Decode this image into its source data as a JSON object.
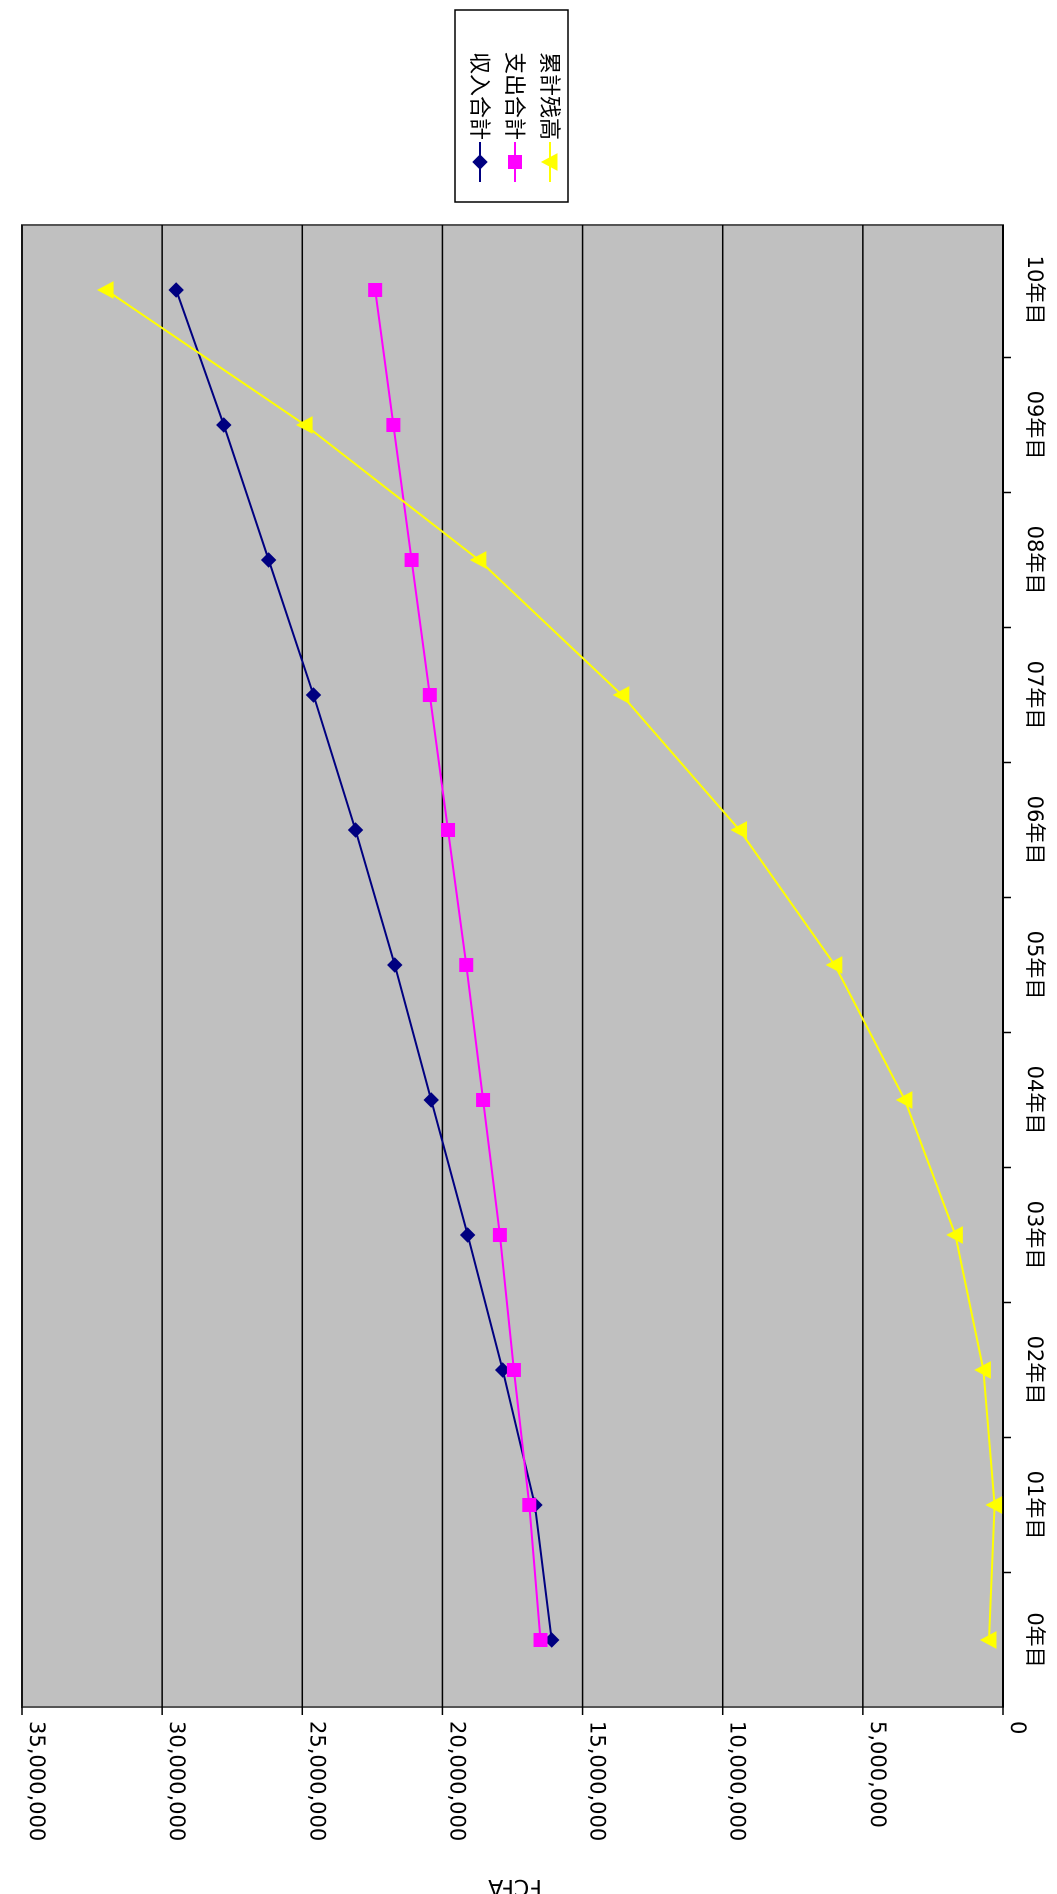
{
  "chart_data": {
    "type": "line",
    "orientation": "rotated-90-clockwise",
    "title": "",
    "xlabel": "",
    "ylabel": "FCFA",
    "categories": [
      "0年目",
      "01年目",
      "02年目",
      "03年目",
      "04年目",
      "05年目",
      "06年目",
      "07年目",
      "08年目",
      "09年目",
      "10年目"
    ],
    "ylim": [
      0,
      35000000
    ],
    "yticks": [
      0,
      5000000,
      10000000,
      15000000,
      20000000,
      25000000,
      30000000,
      35000000
    ],
    "ytick_labels": [
      "0",
      "5,000,000",
      "10,000,000",
      "15,000,000",
      "20,000,000",
      "25,000,000",
      "30,000,000",
      "35,000,000"
    ],
    "grid": true,
    "legend_position": "top-right",
    "colors": {
      "plot_background": "#c0c0c0"
    },
    "series": [
      {
        "name": "収入合計",
        "color": "#000080",
        "marker": "diamond",
        "values": [
          16100000,
          16700000,
          17850000,
          19100000,
          20400000,
          21700000,
          23100000,
          24600000,
          26200000,
          27800000,
          29500000
        ]
      },
      {
        "name": "支出合計",
        "color": "#ff00ff",
        "marker": "square",
        "values": [
          16500000,
          16900000,
          17450000,
          17950000,
          18550000,
          19150000,
          19800000,
          20450000,
          21100000,
          21750000,
          22400000
        ]
      },
      {
        "name": "累計残高",
        "color": "#ffff00",
        "marker": "triangle",
        "values": [
          500000,
          300000,
          700000,
          1700000,
          3500000,
          6000000,
          9400000,
          13600000,
          18700000,
          24900000,
          32000000
        ]
      }
    ]
  }
}
